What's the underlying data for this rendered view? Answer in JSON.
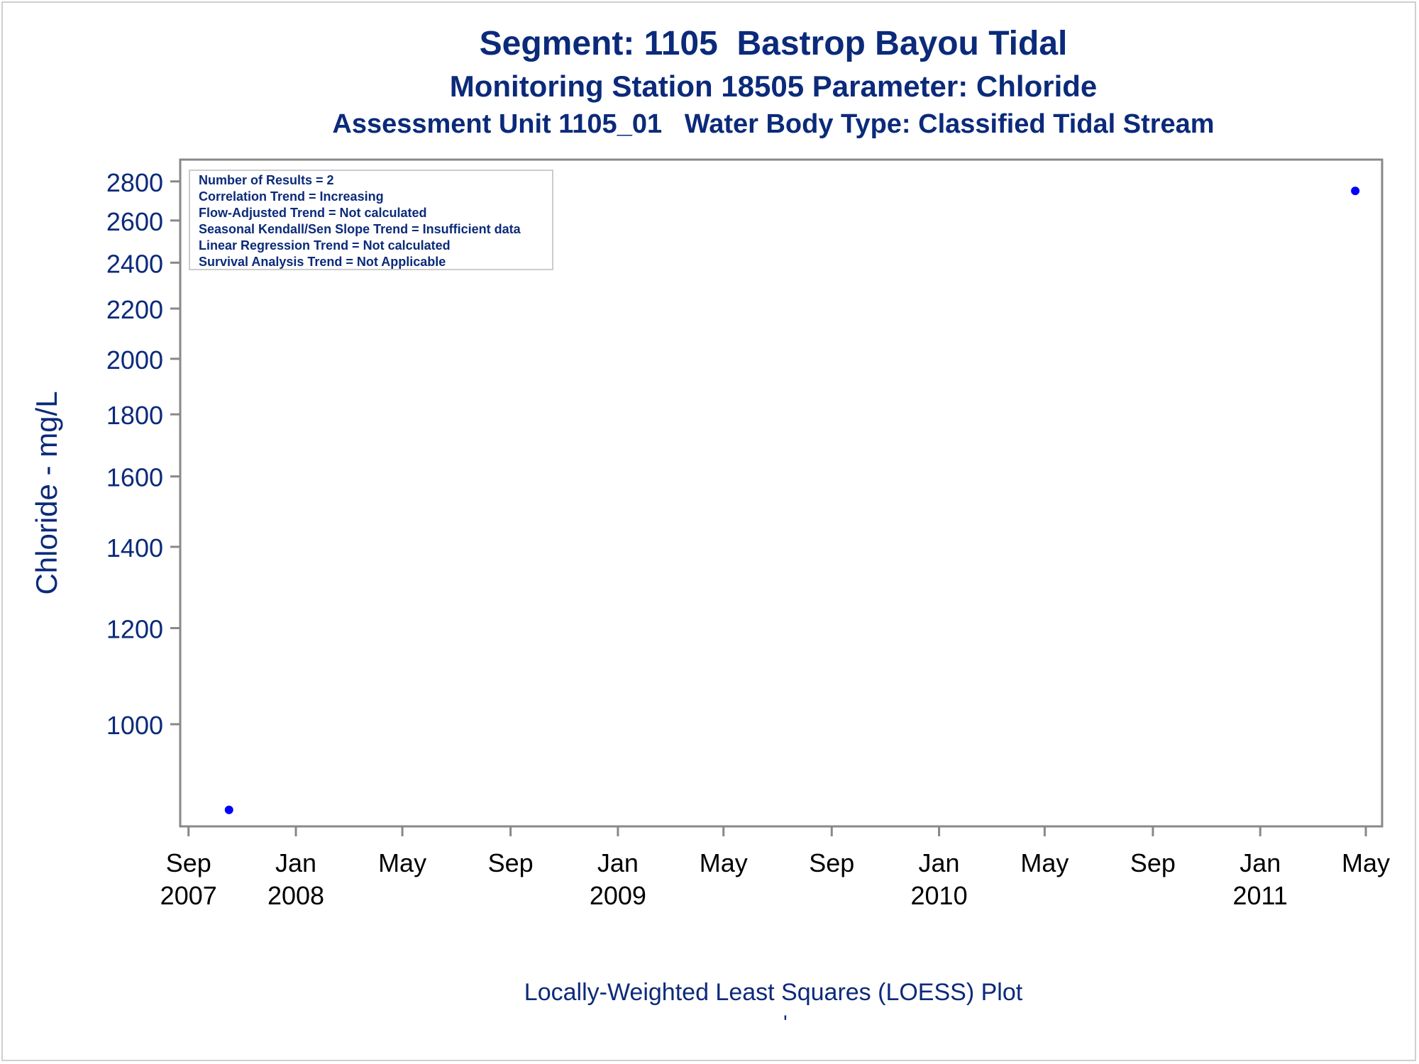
{
  "chart_data": {
    "type": "scatter",
    "title": "Segment: 1105  Bastrop Bayou Tidal",
    "subtitle": "Monitoring Station 18505 Parameter: Chloride",
    "subtitle2": "Assessment Unit 1105_01   Water Body Type: Classified Tidal Stream",
    "ylabel": "Chloride - mg/L",
    "footer": "Locally-Weighted Least Squares (LOESS) Plot",
    "footer_mark": "'",
    "y_scale": "log",
    "ylim": [
      835,
      2860
    ],
    "yticks": [
      1000,
      1200,
      1400,
      1600,
      1800,
      2000,
      2200,
      2400,
      2600,
      2800
    ],
    "xlim": [
      "2007-08-29",
      "2011-05-05"
    ],
    "xticks": [
      {
        "date": "2007-09-01",
        "label": [
          "Sep",
          "2007"
        ]
      },
      {
        "date": "2008-01-01",
        "label": [
          "Jan",
          "2008"
        ]
      },
      {
        "date": "2008-05-01",
        "label": [
          "May",
          ""
        ]
      },
      {
        "date": "2008-09-01",
        "label": [
          "Sep",
          ""
        ]
      },
      {
        "date": "2009-01-01",
        "label": [
          "Jan",
          "2009"
        ]
      },
      {
        "date": "2009-05-01",
        "label": [
          "May",
          ""
        ]
      },
      {
        "date": "2009-09-01",
        "label": [
          "Sep",
          ""
        ]
      },
      {
        "date": "2010-01-01",
        "label": [
          "Jan",
          "2010"
        ]
      },
      {
        "date": "2010-05-01",
        "label": [
          "May",
          ""
        ]
      },
      {
        "date": "2010-09-01",
        "label": [
          "Sep",
          ""
        ]
      },
      {
        "date": "2011-01-01",
        "label": [
          "Jan",
          "2011"
        ]
      },
      {
        "date": "2011-05-01",
        "label": [
          "May",
          ""
        ]
      }
    ],
    "series": [
      {
        "points": [
          {
            "x": "2007-10-17",
            "y": 850
          },
          {
            "x": "2011-04-19",
            "y": 2750
          }
        ]
      }
    ],
    "annotations": [
      "Number of Results = 2",
      "Correlation Trend = Increasing",
      "Flow-Adjusted Trend = Not calculated",
      "Seasonal Kendall/Sen Slope Trend = Insufficient data",
      "Linear Regression Trend = Not calculated",
      "Survival Analysis Trend = Not Applicable"
    ],
    "grid": false,
    "colors": {
      "text": "#0b2a7a",
      "point": "#0000ff",
      "axis": "#888888",
      "tick_label": "#000000"
    }
  }
}
